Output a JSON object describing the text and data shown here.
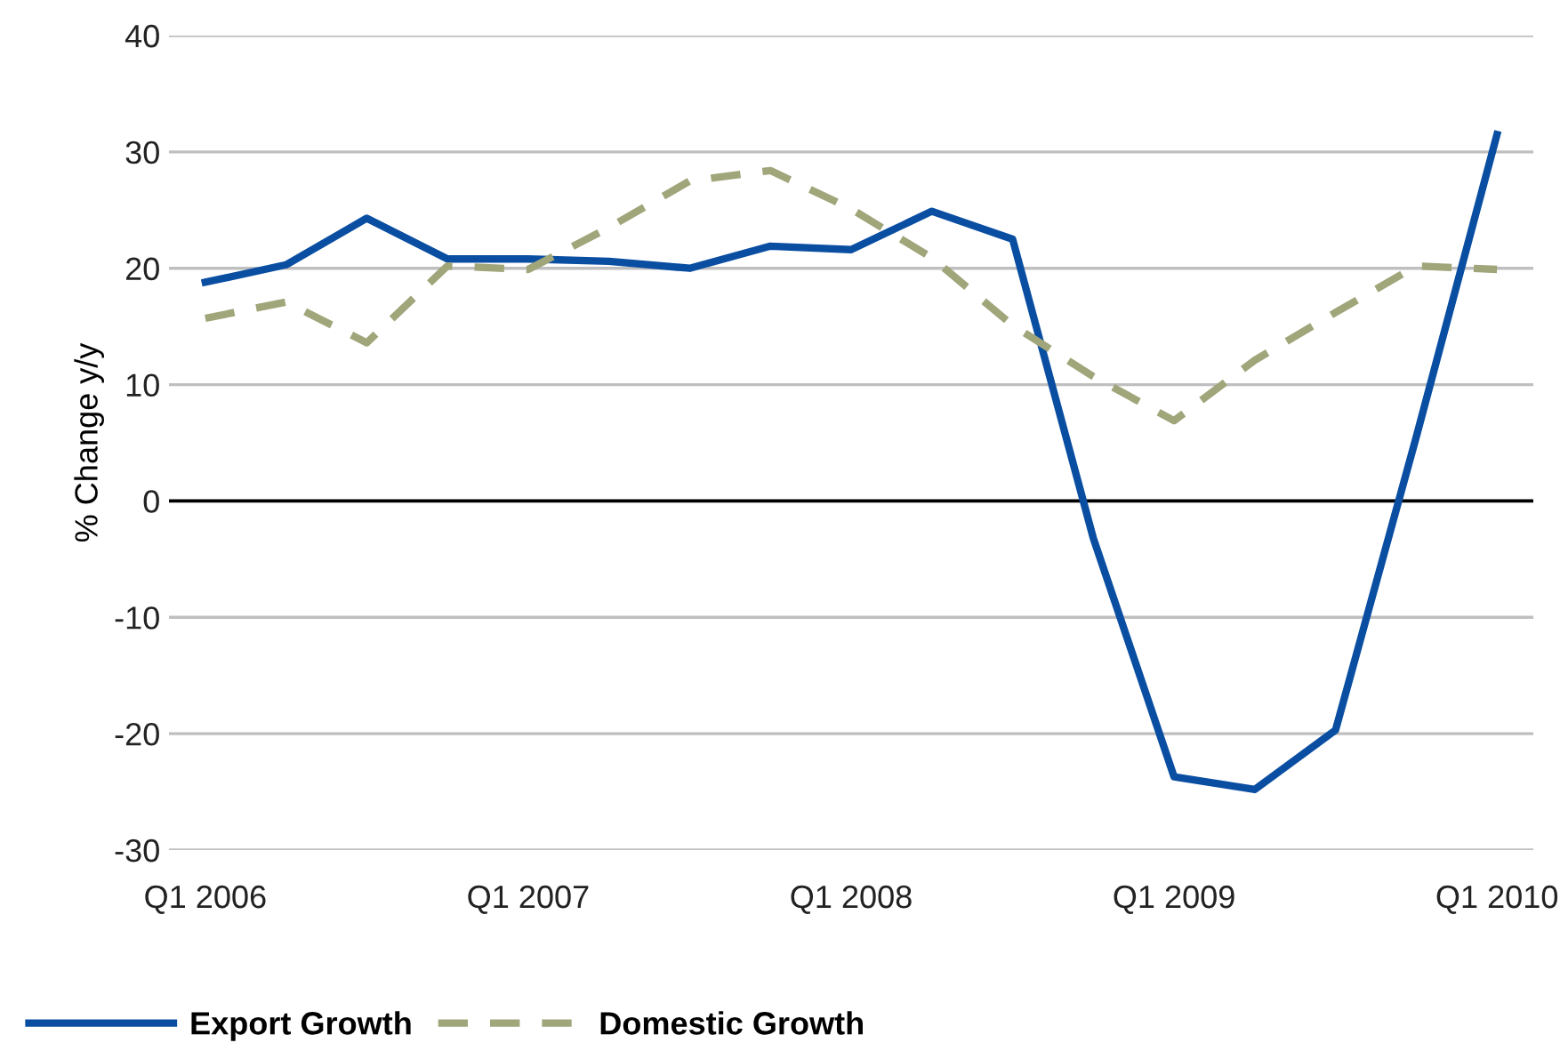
{
  "chart_data": {
    "type": "line",
    "ylabel": "% Change y/y",
    "categories": [
      "Q1 2006",
      null,
      null,
      null,
      "Q1 2007",
      null,
      null,
      null,
      "Q1 2008",
      null,
      null,
      null,
      "Q1 2009",
      null,
      null,
      null,
      "Q1 2010"
    ],
    "series": [
      {
        "name": "Export Growth",
        "color": "#0a4ea2",
        "line_style": "solid",
        "values": [
          18.8,
          20.3,
          24.3,
          20.8,
          20.8,
          20.6,
          20.0,
          21.9,
          21.6,
          24.9,
          22.5,
          -3.2,
          -23.7,
          -24.8,
          -19.7,
          5.5,
          31.5
        ]
      },
      {
        "name": "Domestic Growth",
        "color": "#a0a57a",
        "line_style": "dashed",
        "values": [
          15.7,
          17.1,
          13.6,
          20.2,
          19.9,
          23.5,
          27.5,
          28.4,
          25.1,
          20.9,
          15.1,
          10.7,
          6.9,
          12.1,
          16.2,
          20.2,
          19.9
        ]
      }
    ],
    "ylim": [
      -30,
      40
    ],
    "yticks": [
      -30,
      -20,
      -10,
      0,
      10,
      20,
      30,
      40
    ],
    "grid": "y",
    "legend": "bottom left",
    "marker": "none",
    "ref_lines": [
      {
        "axis": "y",
        "value": 0,
        "color": "#000000"
      }
    ]
  }
}
